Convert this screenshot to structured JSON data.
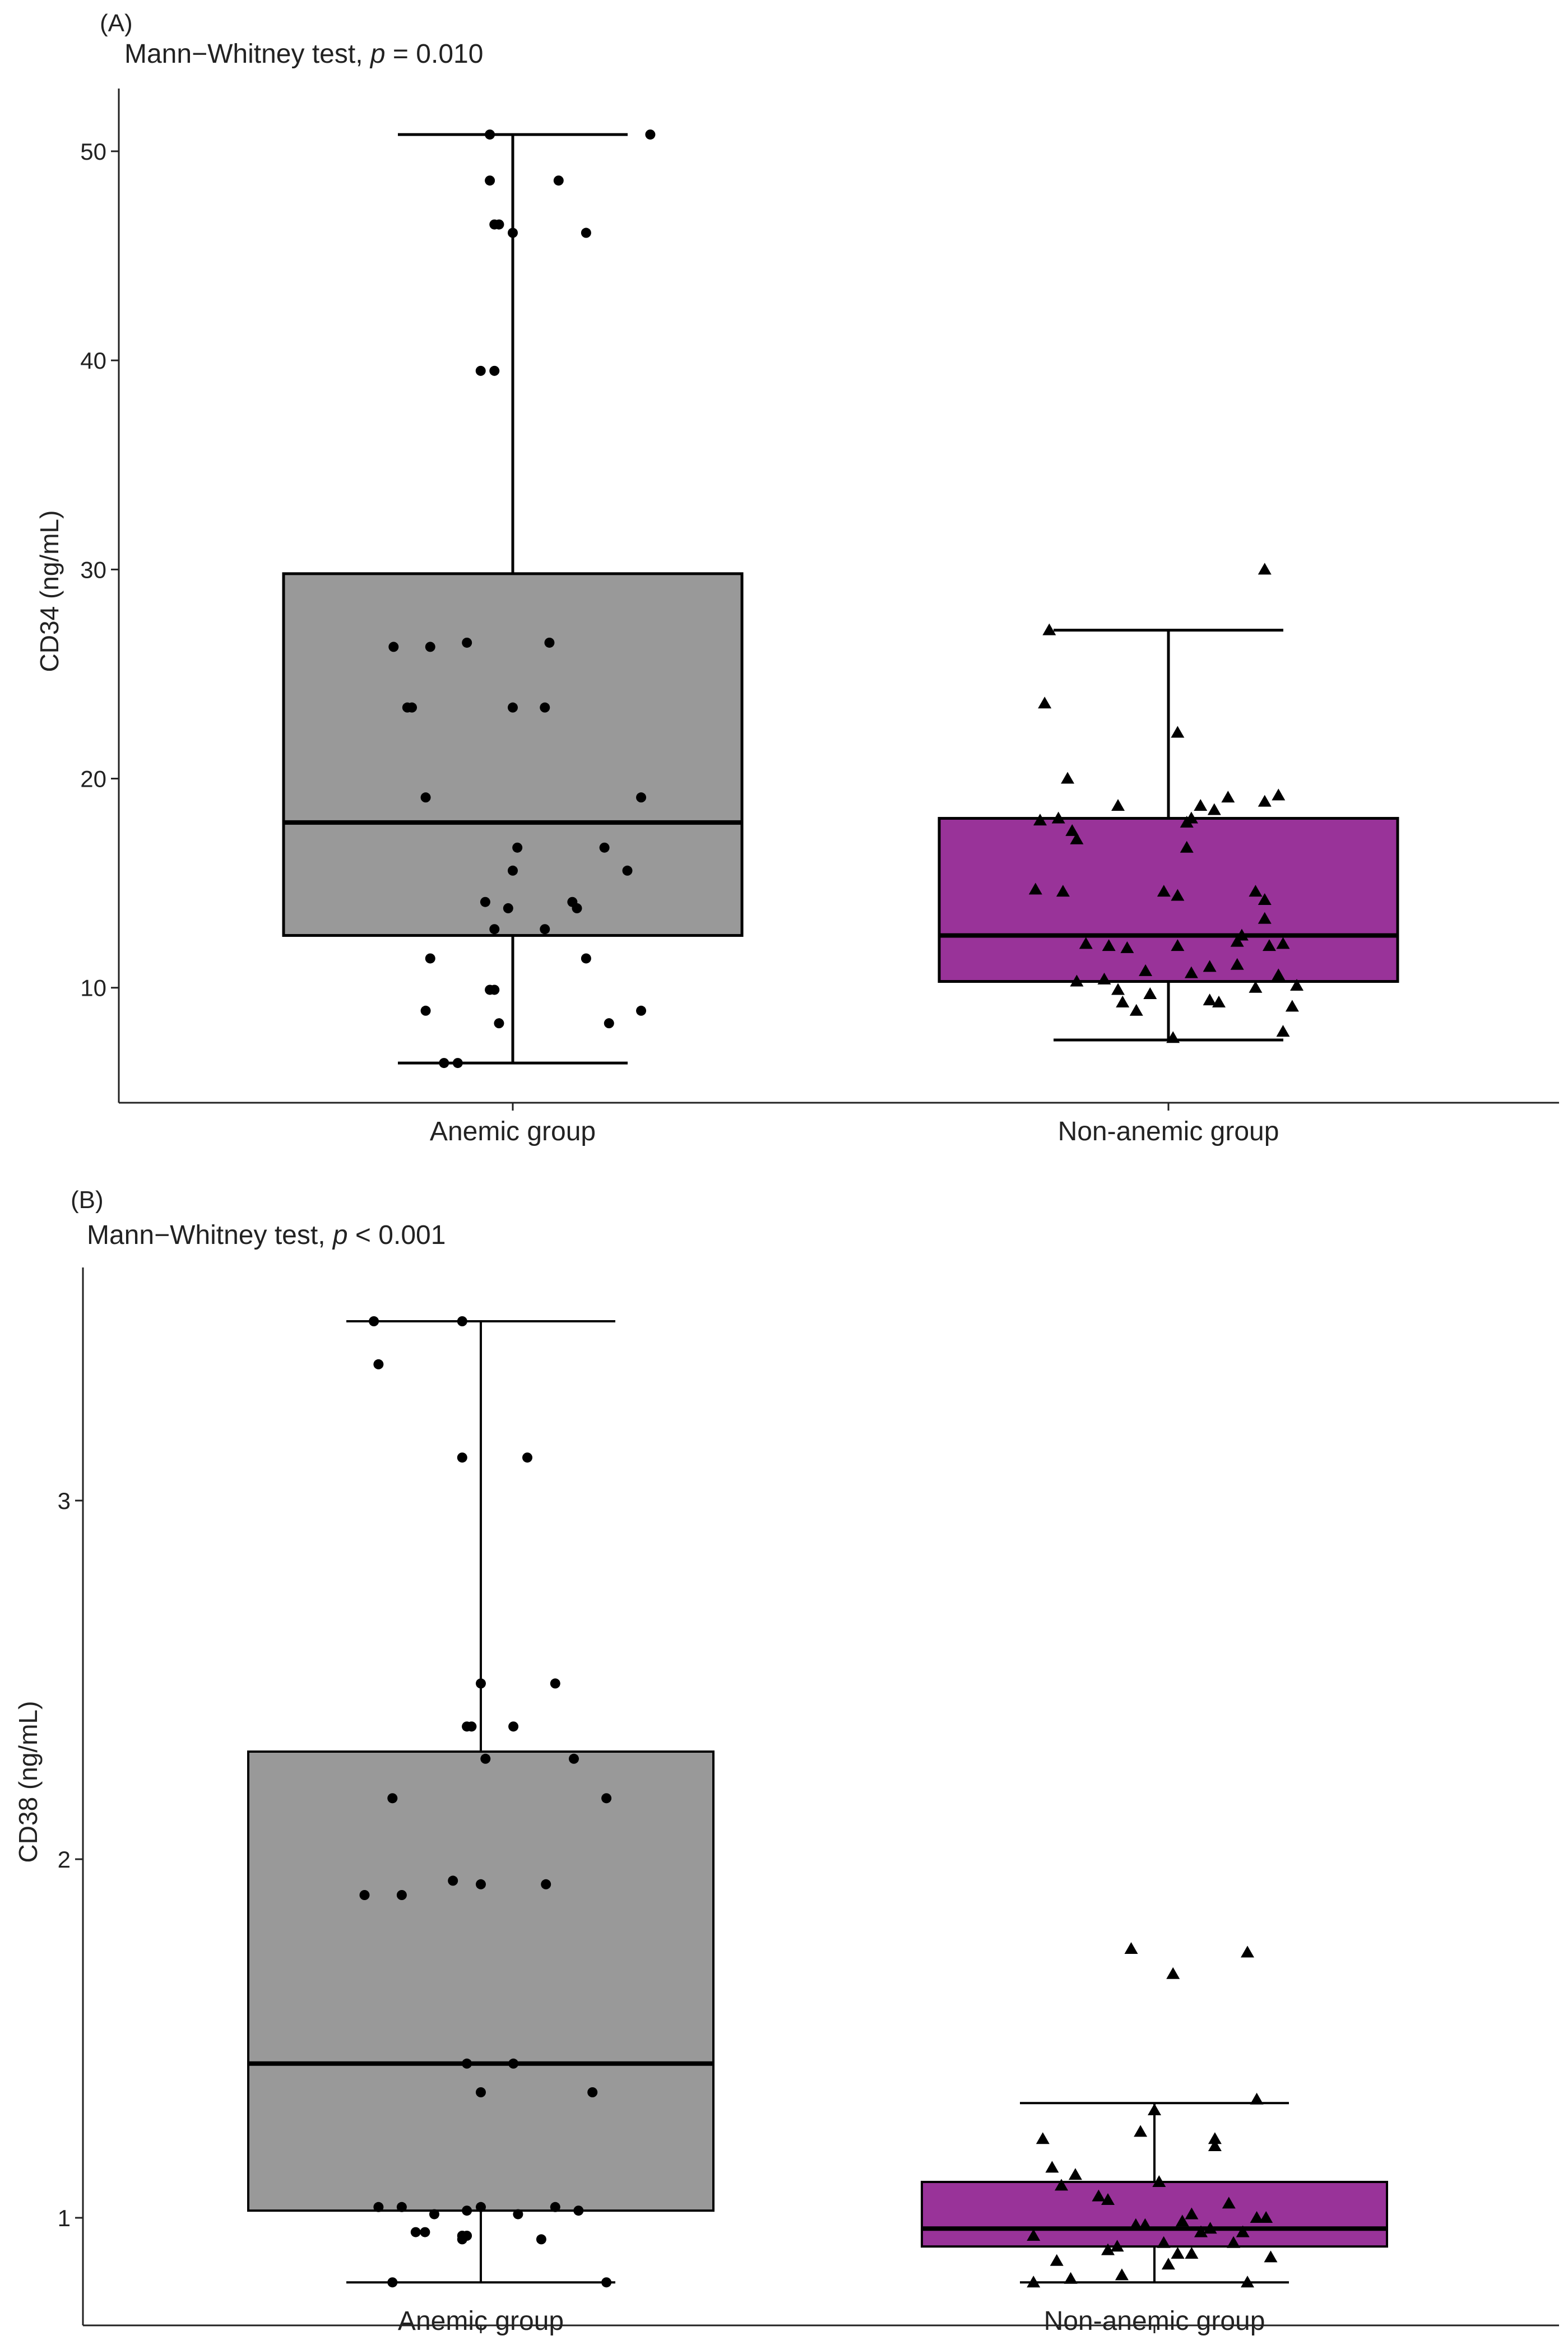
{
  "colors": {
    "anemic_fill": "#999999",
    "nonanemic_fill": "#993399",
    "ink": "#000000",
    "axis": "#222222"
  },
  "panels": [
    {
      "tag": "(A)",
      "title_prefix": "Mann−Whitney test, ",
      "title_p": "p",
      "title_suffix": " = 0.010"
    },
    {
      "tag": "(B)",
      "title_prefix": "Mann−Whitney test, ",
      "title_p": "p",
      "title_suffix": " < 0.001"
    }
  ],
  "chart_data": [
    {
      "type": "boxplot",
      "title": "Mann−Whitney test, p = 0.010",
      "xlabel": "",
      "ylabel": "CD34 (ng/mL)",
      "categories": [
        "Anemic group",
        "Non-anemic group"
      ],
      "ylim": [
        4.5,
        53
      ],
      "yticks": [
        10,
        20,
        30,
        40,
        50
      ],
      "yticklabels": [
        "10",
        "20",
        "30",
        "40",
        "50"
      ],
      "boxes": [
        {
          "name": "Anemic group",
          "marker": "circle",
          "whisker_low": 6.4,
          "q1": 12.5,
          "median": 17.9,
          "q3": 29.8,
          "whisker_high": 50.8
        },
        {
          "name": "Non-anemic group",
          "marker": "triangle",
          "whisker_low": 7.5,
          "q1": 10.3,
          "median": 12.5,
          "q3": 18.1,
          "whisker_high": 27.1
        }
      ],
      "points": [
        [
          {
            "x": 0.3,
            "y": 50.8
          },
          {
            "x": -0.05,
            "y": 50.8
          },
          {
            "x": -0.05,
            "y": 48.6
          },
          {
            "x": 0.1,
            "y": 48.6
          },
          {
            "x": -0.03,
            "y": 46.5
          },
          {
            "x": -0.04,
            "y": 46.5
          },
          {
            "x": 0.0,
            "y": 46.1
          },
          {
            "x": 0.16,
            "y": 46.1
          },
          {
            "x": -0.07,
            "y": 39.5
          },
          {
            "x": -0.04,
            "y": 39.5
          },
          {
            "x": -0.26,
            "y": 26.3
          },
          {
            "x": -0.18,
            "y": 26.3
          },
          {
            "x": -0.1,
            "y": 26.5
          },
          {
            "x": 0.08,
            "y": 26.5
          },
          {
            "x": -0.23,
            "y": 23.4
          },
          {
            "x": -0.22,
            "y": 23.4
          },
          {
            "x": 0.0,
            "y": 23.4
          },
          {
            "x": 0.07,
            "y": 23.4
          },
          {
            "x": -0.19,
            "y": 19.1
          },
          {
            "x": 0.28,
            "y": 19.1
          },
          {
            "x": 0.01,
            "y": 16.7
          },
          {
            "x": 0.2,
            "y": 16.7
          },
          {
            "x": 0.0,
            "y": 15.6
          },
          {
            "x": 0.25,
            "y": 15.6
          },
          {
            "x": -0.06,
            "y": 14.1
          },
          {
            "x": -0.01,
            "y": 13.8
          },
          {
            "x": 0.13,
            "y": 14.1
          },
          {
            "x": 0.14,
            "y": 13.8
          },
          {
            "x": -0.04,
            "y": 12.8
          },
          {
            "x": 0.07,
            "y": 12.8
          },
          {
            "x": -0.18,
            "y": 11.4
          },
          {
            "x": 0.16,
            "y": 11.4
          },
          {
            "x": -0.05,
            "y": 9.9
          },
          {
            "x": -0.04,
            "y": 9.9
          },
          {
            "x": -0.19,
            "y": 8.9
          },
          {
            "x": 0.28,
            "y": 8.9
          },
          {
            "x": -0.03,
            "y": 8.3
          },
          {
            "x": 0.21,
            "y": 8.3
          },
          {
            "x": -0.15,
            "y": 6.4
          },
          {
            "x": -0.12,
            "y": 6.4
          }
        ],
        [
          {
            "x": 0.21,
            "y": 30.0
          },
          {
            "x": -0.26,
            "y": 27.1
          },
          {
            "x": -0.27,
            "y": 23.6
          },
          {
            "x": 0.02,
            "y": 22.2
          },
          {
            "x": -0.22,
            "y": 20.0
          },
          {
            "x": -0.11,
            "y": 18.7
          },
          {
            "x": 0.07,
            "y": 18.7
          },
          {
            "x": 0.1,
            "y": 18.5
          },
          {
            "x": 0.13,
            "y": 19.1
          },
          {
            "x": 0.24,
            "y": 19.2
          },
          {
            "x": 0.21,
            "y": 18.9
          },
          {
            "x": -0.28,
            "y": 18.0
          },
          {
            "x": -0.24,
            "y": 18.1
          },
          {
            "x": -0.21,
            "y": 17.5
          },
          {
            "x": -0.2,
            "y": 17.1
          },
          {
            "x": 0.04,
            "y": 17.9
          },
          {
            "x": 0.05,
            "y": 18.1
          },
          {
            "x": 0.04,
            "y": 16.7
          },
          {
            "x": -0.29,
            "y": 14.7
          },
          {
            "x": -0.23,
            "y": 14.6
          },
          {
            "x": -0.01,
            "y": 14.6
          },
          {
            "x": 0.02,
            "y": 14.4
          },
          {
            "x": 0.19,
            "y": 14.6
          },
          {
            "x": 0.21,
            "y": 14.2
          },
          {
            "x": 0.21,
            "y": 13.3
          },
          {
            "x": -0.18,
            "y": 12.1
          },
          {
            "x": -0.13,
            "y": 12.0
          },
          {
            "x": -0.09,
            "y": 11.9
          },
          {
            "x": 0.02,
            "y": 12.0
          },
          {
            "x": 0.15,
            "y": 12.2
          },
          {
            "x": 0.16,
            "y": 12.5
          },
          {
            "x": 0.22,
            "y": 12.0
          },
          {
            "x": 0.25,
            "y": 12.1
          },
          {
            "x": -0.2,
            "y": 10.3
          },
          {
            "x": -0.14,
            "y": 10.4
          },
          {
            "x": -0.11,
            "y": 9.9
          },
          {
            "x": -0.05,
            "y": 10.8
          },
          {
            "x": 0.05,
            "y": 10.7
          },
          {
            "x": 0.09,
            "y": 11.0
          },
          {
            "x": 0.15,
            "y": 11.1
          },
          {
            "x": 0.24,
            "y": 10.6
          },
          {
            "x": 0.28,
            "y": 10.1
          },
          {
            "x": -0.1,
            "y": 9.3
          },
          {
            "x": -0.07,
            "y": 8.9
          },
          {
            "x": -0.04,
            "y": 9.7
          },
          {
            "x": 0.09,
            "y": 9.4
          },
          {
            "x": 0.11,
            "y": 9.3
          },
          {
            "x": 0.27,
            "y": 9.1
          },
          {
            "x": 0.19,
            "y": 10.0
          },
          {
            "x": 0.01,
            "y": 7.6
          },
          {
            "x": 0.25,
            "y": 7.9
          }
        ]
      ]
    },
    {
      "type": "boxplot",
      "title": "Mann−Whitney test, p < 0.001",
      "xlabel": "",
      "ylabel": "CD38 (ng/mL)",
      "categories": [
        "Anemic group",
        "Non-anemic group"
      ],
      "ylim": [
        0.7,
        3.65
      ],
      "yticks": [
        1,
        2,
        3
      ],
      "yticklabels": [
        "1",
        "2",
        "3"
      ],
      "boxes": [
        {
          "name": "Anemic group",
          "marker": "circle",
          "whisker_low": 0.82,
          "q1": 1.02,
          "median": 1.43,
          "q3": 2.3,
          "whisker_high": 3.5
        },
        {
          "name": "Non-anemic group",
          "marker": "triangle",
          "whisker_low": 0.82,
          "q1": 0.92,
          "median": 0.97,
          "q3": 1.1,
          "whisker_high": 1.32
        }
      ],
      "points": [
        [
          {
            "x": -0.23,
            "y": 3.5
          },
          {
            "x": -0.04,
            "y": 3.5
          },
          {
            "x": -0.22,
            "y": 3.38
          },
          {
            "x": -0.04,
            "y": 3.12
          },
          {
            "x": 0.1,
            "y": 3.12
          },
          {
            "x": 0.0,
            "y": 2.49
          },
          {
            "x": 0.16,
            "y": 2.49
          },
          {
            "x": -0.03,
            "y": 2.37
          },
          {
            "x": -0.02,
            "y": 2.37
          },
          {
            "x": 0.07,
            "y": 2.37
          },
          {
            "x": 0.01,
            "y": 2.28
          },
          {
            "x": 0.2,
            "y": 2.28
          },
          {
            "x": -0.19,
            "y": 2.17
          },
          {
            "x": 0.27,
            "y": 2.17
          },
          {
            "x": -0.25,
            "y": 1.9
          },
          {
            "x": -0.17,
            "y": 1.9
          },
          {
            "x": -0.06,
            "y": 1.94
          },
          {
            "x": 0.0,
            "y": 1.93
          },
          {
            "x": 0.14,
            "y": 1.93
          },
          {
            "x": -0.03,
            "y": 1.43
          },
          {
            "x": 0.07,
            "y": 1.43
          },
          {
            "x": 0.0,
            "y": 1.35
          },
          {
            "x": 0.24,
            "y": 1.35
          },
          {
            "x": -0.22,
            "y": 1.03
          },
          {
            "x": -0.17,
            "y": 1.03
          },
          {
            "x": -0.1,
            "y": 1.01
          },
          {
            "x": -0.03,
            "y": 1.02
          },
          {
            "x": 0.0,
            "y": 1.03
          },
          {
            "x": 0.08,
            "y": 1.01
          },
          {
            "x": 0.16,
            "y": 1.03
          },
          {
            "x": 0.21,
            "y": 1.02
          },
          {
            "x": -0.14,
            "y": 0.96
          },
          {
            "x": -0.12,
            "y": 0.96
          },
          {
            "x": -0.04,
            "y": 0.94
          },
          {
            "x": -0.04,
            "y": 0.95
          },
          {
            "x": -0.03,
            "y": 0.95
          },
          {
            "x": 0.13,
            "y": 0.94
          },
          {
            "x": -0.19,
            "y": 0.82
          },
          {
            "x": 0.27,
            "y": 0.82
          }
        ],
        [
          {
            "x": -0.05,
            "y": 1.75
          },
          {
            "x": 0.04,
            "y": 1.68
          },
          {
            "x": 0.2,
            "y": 1.74
          },
          {
            "x": 0.22,
            "y": 1.33
          },
          {
            "x": 0.0,
            "y": 1.3
          },
          {
            "x": -0.24,
            "y": 1.22
          },
          {
            "x": -0.03,
            "y": 1.24
          },
          {
            "x": 0.13,
            "y": 1.22
          },
          {
            "x": 0.13,
            "y": 1.2
          },
          {
            "x": -0.22,
            "y": 1.14
          },
          {
            "x": -0.2,
            "y": 1.09
          },
          {
            "x": -0.17,
            "y": 1.12
          },
          {
            "x": -0.12,
            "y": 1.06
          },
          {
            "x": -0.1,
            "y": 1.05
          },
          {
            "x": 0.01,
            "y": 1.1
          },
          {
            "x": -0.26,
            "y": 0.95
          },
          {
            "x": -0.21,
            "y": 0.88
          },
          {
            "x": -0.18,
            "y": 0.83
          },
          {
            "x": -0.1,
            "y": 0.91
          },
          {
            "x": -0.08,
            "y": 0.92
          },
          {
            "x": -0.07,
            "y": 0.84
          },
          {
            "x": -0.04,
            "y": 0.98
          },
          {
            "x": -0.02,
            "y": 0.98
          },
          {
            "x": 0.02,
            "y": 0.93
          },
          {
            "x": 0.03,
            "y": 0.87
          },
          {
            "x": 0.05,
            "y": 0.9
          },
          {
            "x": 0.06,
            "y": 0.99
          },
          {
            "x": 0.08,
            "y": 0.9
          },
          {
            "x": 0.08,
            "y": 1.01
          },
          {
            "x": 0.1,
            "y": 0.96
          },
          {
            "x": 0.12,
            "y": 0.97
          },
          {
            "x": 0.16,
            "y": 1.04
          },
          {
            "x": 0.17,
            "y": 0.93
          },
          {
            "x": 0.19,
            "y": 0.96
          },
          {
            "x": 0.22,
            "y": 1.0
          },
          {
            "x": 0.24,
            "y": 1.0
          },
          {
            "x": 0.25,
            "y": 0.89
          },
          {
            "x": -0.26,
            "y": 0.82
          },
          {
            "x": 0.2,
            "y": 0.82
          }
        ]
      ]
    }
  ]
}
